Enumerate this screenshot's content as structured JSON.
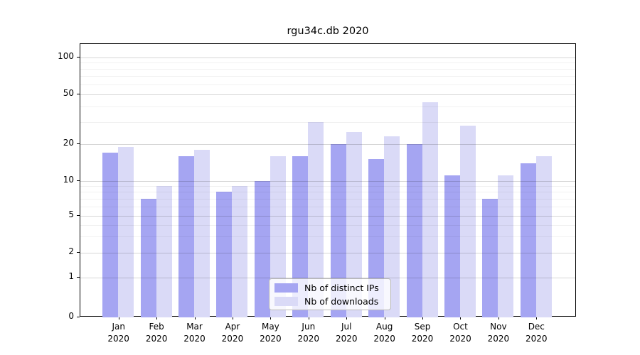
{
  "title": "rgu34c.db 2020",
  "colors": {
    "series1": "#a5a5f2",
    "series2": "#dadaf7",
    "axis": "#000000",
    "grid_major": "rgba(0,0,0,0.16)",
    "grid_minor": "rgba(0,0,0,0.055)"
  },
  "legend": {
    "items": [
      {
        "label": "Nb of distinct IPs",
        "color": "#a5a5f2"
      },
      {
        "label": "Nb of downloads",
        "color": "#dadaf7"
      }
    ]
  },
  "chart_data": {
    "type": "bar",
    "title": "rgu34c.db 2020",
    "categories": [
      "Jan",
      "Feb",
      "Mar",
      "Apr",
      "May",
      "Jun",
      "Jul",
      "Aug",
      "Sep",
      "Oct",
      "Nov",
      "Dec"
    ],
    "category_year": "2020",
    "series": [
      {
        "name": "Nb of distinct IPs",
        "color": "#a5a5f2",
        "values": [
          17,
          7,
          16,
          8,
          10,
          16,
          20,
          15,
          20,
          11,
          7,
          14
        ]
      },
      {
        "name": "Nb of downloads",
        "color": "#dadaf7",
        "values": [
          19,
          9,
          18,
          9,
          16,
          30,
          25,
          23,
          43,
          28,
          11,
          16
        ]
      }
    ],
    "yscale": "symlog",
    "ylim": [
      0,
      128
    ],
    "yticks": [
      0,
      1,
      2,
      5,
      10,
      20,
      50,
      100
    ],
    "ytick_labels": [
      "0",
      "1",
      "2",
      "5",
      "10",
      "20",
      "50",
      "100"
    ],
    "yticks_minor": [
      3,
      4,
      6,
      7,
      8,
      9,
      30,
      40,
      60,
      70,
      80,
      90
    ],
    "grid": true,
    "legend_position": "lower center"
  }
}
